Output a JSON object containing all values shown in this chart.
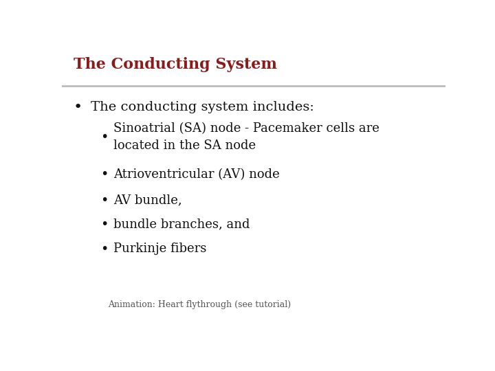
{
  "title": "The Conducting System",
  "title_color": "#8B1A1A",
  "title_fontsize": 16,
  "background_color": "#FFFFFF",
  "separator_color": "#BBBBBB",
  "bullet1_text": "The conducting system includes:",
  "bullet1_color": "#111111",
  "bullet1_fontsize": 14,
  "sub_bullets": [
    "Sinoatrial (SA) node - Pacemaker cells are\nlocated in the SA node",
    "Atrioventricular (AV) node",
    "AV bundle,",
    "bundle branches, and",
    "Purkinje fibers"
  ],
  "sub_bullet_color": "#111111",
  "sub_bullet_fontsize": 13,
  "annotation_text": "Animation: Heart flythrough (see tutorial)",
  "annotation_color": "#555555",
  "annotation_fontsize": 9,
  "bullet_color": "#111111"
}
